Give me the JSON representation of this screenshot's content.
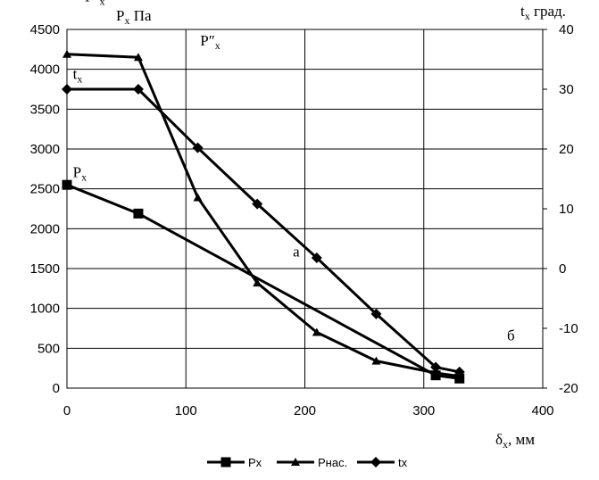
{
  "chart_data": {
    "type": "line",
    "x_axis": {
      "min": 0,
      "max": 400,
      "step": 100,
      "label": "δx, мм"
    },
    "y_left": {
      "min": 0,
      "max": 4500,
      "step": 500,
      "label": "Px Па"
    },
    "y_right": {
      "min": -20,
      "max": 40,
      "step": 10,
      "label": "tx град."
    },
    "grid": true,
    "legend_position": "bottom",
    "series": [
      {
        "name": "Px",
        "axis": "left",
        "marker": "square",
        "x": [
          0,
          60,
          310,
          330
        ],
        "y": [
          2550,
          2190,
          160,
          120
        ]
      },
      {
        "name": "Pнас.",
        "axis": "left",
        "marker": "triangle",
        "x": [
          0,
          60,
          110,
          160,
          210,
          260,
          310,
          330
        ],
        "y": [
          4190,
          4150,
          2390,
          1320,
          700,
          340,
          190,
          150
        ]
      },
      {
        "name": "tx",
        "axis": "right",
        "marker": "diamond",
        "x": [
          0,
          60,
          110,
          160,
          210,
          260,
          310,
          330
        ],
        "y": [
          30,
          30,
          20.2,
          10.8,
          1.8,
          -7.6,
          -16.5,
          -17.3
        ]
      }
    ],
    "annotations": [
      {
        "text": "P″x",
        "x": 15,
        "y": 4850,
        "axis": "left"
      },
      {
        "text": "P″x",
        "x": 112,
        "y": 4300,
        "axis": "left"
      },
      {
        "text": "tx",
        "x": 5,
        "y": 3880,
        "axis": "left"
      },
      {
        "text": "Px",
        "x": 5,
        "y": 2650,
        "axis": "left"
      },
      {
        "text": "а",
        "x": 190,
        "y": 1650,
        "axis": "left"
      },
      {
        "text": "б",
        "x": 370,
        "y": 600,
        "axis": "left"
      }
    ]
  }
}
